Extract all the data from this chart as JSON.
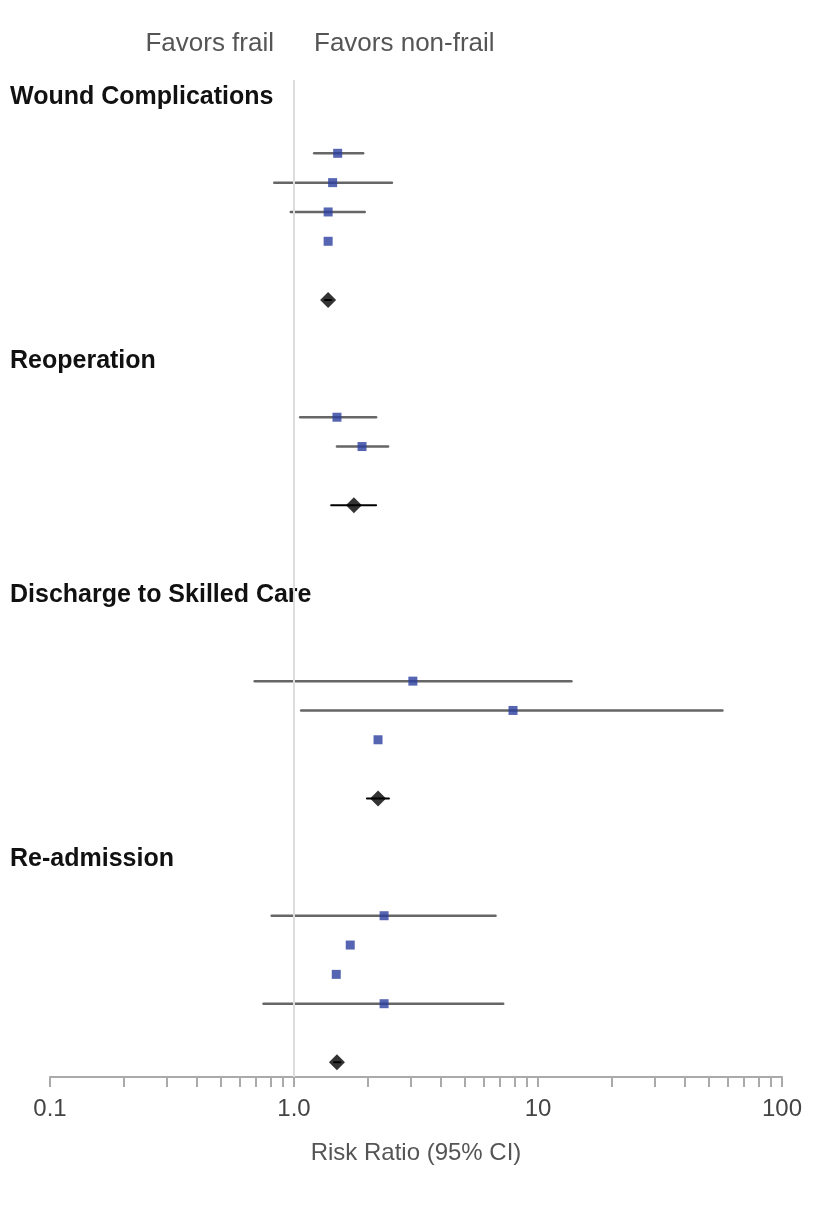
{
  "chart_data": {
    "type": "scatter",
    "orientation": "horizontal",
    "log": "x",
    "xlabel": "Risk Ratio (95% CI)",
    "annotations": [
      "Favors frail",
      "Favors non-frail"
    ],
    "categories": [
      "Wound Complications",
      null,
      null,
      null,
      null,
      null,
      null,
      null,
      null,
      "Reoperation",
      null,
      null,
      null,
      null,
      null,
      null,
      null,
      "Discharge to Skilled Care",
      null,
      null,
      null,
      null,
      null,
      null,
      null,
      null,
      "Re-admission",
      null,
      null,
      null,
      null,
      null,
      null,
      null
    ],
    "xlim": [
      0.1,
      100
    ],
    "xticks": [
      0.1,
      {
        "value": 0.2,
        "label": null
      },
      {
        "value": 0.3,
        "label": null
      },
      {
        "value": 0.4,
        "label": null
      },
      {
        "value": 0.5,
        "label": null
      },
      {
        "value": 0.6,
        "label": null
      },
      {
        "value": 0.7,
        "label": null
      },
      {
        "value": 0.8,
        "label": null
      },
      {
        "value": 0.9,
        "label": null
      },
      {
        "value": 1,
        "label": "1.0"
      },
      {
        "value": 2,
        "label": null
      },
      {
        "value": 3,
        "label": null
      },
      {
        "value": 4,
        "label": null
      },
      {
        "value": 5,
        "label": null
      },
      {
        "value": 6,
        "label": null
      },
      {
        "value": 7,
        "label": null
      },
      {
        "value": 8,
        "label": null
      },
      {
        "value": 9,
        "label": null
      },
      10,
      {
        "value": 20,
        "label": null
      },
      {
        "value": 30,
        "label": null
      },
      {
        "value": 40,
        "label": null
      },
      {
        "value": 50,
        "label": null
      },
      {
        "value": 60,
        "label": null
      },
      {
        "value": 70,
        "label": null
      },
      {
        "value": 80,
        "label": null
      },
      {
        "value": 90,
        "label": null
      },
      100
    ],
    "ref_lines": [
      {
        "axis": "x",
        "value": 1,
        "color": "#dddddd"
      }
    ],
    "series": [
      {
        "marker": "square",
        "color": "#2b3f9e",
        "values": [
          null,
          null,
          1.51,
          1.44,
          1.38,
          1.38,
          null,
          null,
          null,
          null,
          null,
          1.5,
          1.9,
          null,
          null,
          null,
          null,
          null,
          null,
          null,
          3.07,
          7.9,
          2.21,
          null,
          null,
          null,
          null,
          null,
          2.34,
          1.7,
          1.49,
          2.34,
          null,
          null
        ],
        "errors": [
          null,
          null,
          [
            1.21,
            1.92
          ],
          [
            0.83,
            2.52
          ],
          [
            0.97,
            1.95
          ],
          null,
          null,
          null,
          null,
          null,
          null,
          [
            1.06,
            2.17
          ],
          [
            1.5,
            2.43
          ],
          null,
          null,
          null,
          null,
          null,
          null,
          null,
          [
            0.69,
            13.7
          ],
          [
            1.07,
            57
          ],
          null,
          null,
          null,
          null,
          null,
          null,
          [
            0.81,
            6.7
          ],
          null,
          null,
          [
            0.75,
            7.2
          ],
          null,
          null
        ]
      },
      {
        "marker": "diamond",
        "color": "#000000",
        "values": [
          null,
          null,
          null,
          null,
          null,
          null,
          null,
          1.38,
          null,
          null,
          null,
          null,
          null,
          null,
          1.76,
          null,
          null,
          null,
          null,
          null,
          null,
          null,
          null,
          null,
          2.21,
          null,
          null,
          null,
          null,
          null,
          null,
          null,
          null,
          1.5
        ],
        "errors": [
          null,
          null,
          null,
          null,
          null,
          null,
          null,
          [
            1.34,
            1.42
          ],
          null,
          null,
          null,
          null,
          null,
          null,
          [
            1.42,
            2.17
          ],
          null,
          null,
          null,
          null,
          null,
          null,
          null,
          null,
          null,
          [
            1.99,
            2.45
          ],
          null,
          null,
          null,
          null,
          null,
          null,
          null,
          null,
          [
            1.46,
            1.55
          ]
        ]
      }
    ]
  }
}
